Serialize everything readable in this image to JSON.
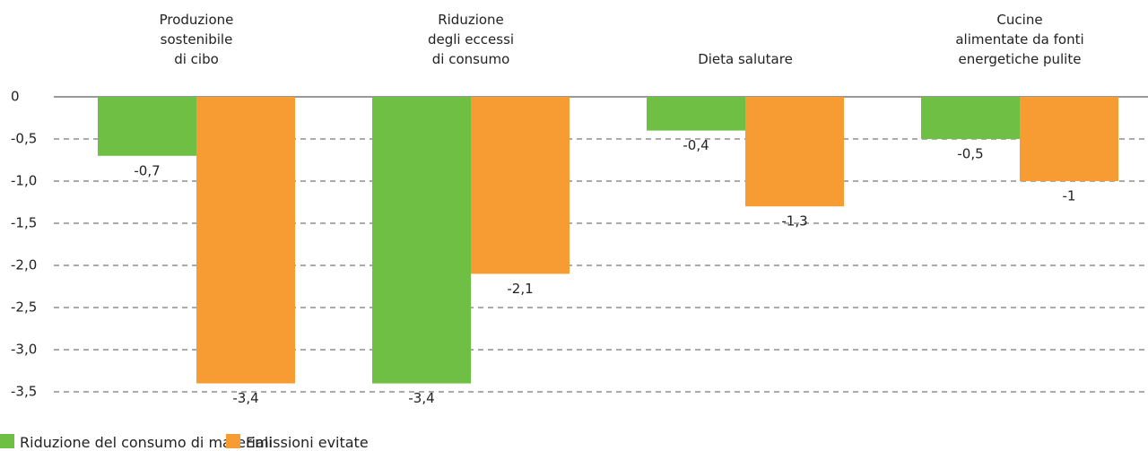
{
  "chart_data": {
    "type": "bar",
    "categories": [
      "Produzione\nsostenibile\ndi cibo",
      "Riduzione\ndegli eccessi\ndi consumo",
      "Dieta salutare",
      "Cucine\nalimentate da fonti\nenergetiche pulite"
    ],
    "series": [
      {
        "name": "Riduzione del consumo di materiali",
        "color": "#6fbf44",
        "values": [
          -0.7,
          -3.4,
          -0.4,
          -0.5
        ],
        "value_labels": [
          "-0,7",
          "-3,4",
          "-0,4",
          "-0,5"
        ]
      },
      {
        "name": "Emissioni evitate",
        "color": "#f79b33",
        "values": [
          -3.4,
          -2.1,
          -1.3,
          -1
        ],
        "value_labels": [
          "-3,4",
          "-2,1",
          "-1,3",
          "-1"
        ]
      }
    ],
    "ylim": [
      -3.5,
      0
    ],
    "yticks": [
      0,
      {
        "value": -0.5,
        "label": "-0,5"
      },
      {
        "value": -1.0,
        "label": "-1,0"
      },
      {
        "value": -1.5,
        "label": "-1,5"
      },
      {
        "value": -2.0,
        "label": "-2,0"
      },
      {
        "value": -2.5,
        "label": "-2,5"
      },
      {
        "value": -3.0,
        "label": "-3,0"
      },
      {
        "value": -3.5,
        "label": "-3,5"
      }
    ],
    "grid": true
  }
}
